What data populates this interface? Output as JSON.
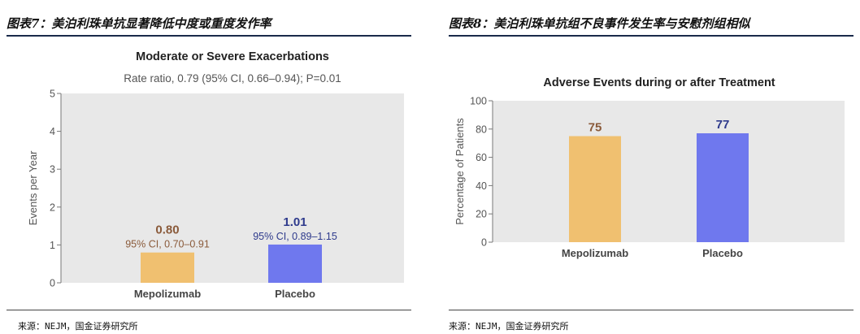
{
  "figures": [
    {
      "caption": "图表7：美泊利珠单抗显著降低中度或重度发作率",
      "source": "来源：NEJM，国金证券研究所"
    },
    {
      "caption": "图表8：美泊利珠单抗组不良事件发生率与安慰剂组相似",
      "source": "来源：NEJM，国金证券研究所"
    }
  ],
  "chart_data": [
    {
      "type": "bar",
      "title": "Moderate or Severe Exacerbations",
      "subtitle": "Rate ratio, 0.79 (95% CI, 0.66–0.94); P=0.01",
      "xlabel": "",
      "ylabel": "Events per Year",
      "ylim": [
        0,
        5
      ],
      "yticks": [
        0,
        1,
        2,
        3,
        4,
        5
      ],
      "categories": [
        "Mepolizumab",
        "Placebo"
      ],
      "values": [
        0.8,
        1.01
      ],
      "value_labels": [
        "0.80",
        "1.01"
      ],
      "ci_labels": [
        "95% CI, 0.70–0.91",
        "95% CI, 0.89–1.15"
      ],
      "colors": [
        "#f0c070",
        "#6f78ee"
      ],
      "label_colors": [
        "#8a5a3a",
        "#2e3a8c"
      ],
      "background": "#e8e8e8",
      "grid": false
    },
    {
      "type": "bar",
      "title": "Adverse Events during or after Treatment",
      "xlabel": "",
      "ylabel": "Percentage of Patients",
      "ylim": [
        0,
        100
      ],
      "yticks": [
        0,
        20,
        40,
        60,
        80,
        100
      ],
      "categories": [
        "Mepolizumab",
        "Placebo"
      ],
      "values": [
        75,
        77
      ],
      "value_labels": [
        "75",
        "77"
      ],
      "colors": [
        "#f0c070",
        "#6f78ee"
      ],
      "label_colors": [
        "#8a5a3a",
        "#2e3a8c"
      ],
      "background": "#e8e8e8",
      "grid": false
    }
  ]
}
